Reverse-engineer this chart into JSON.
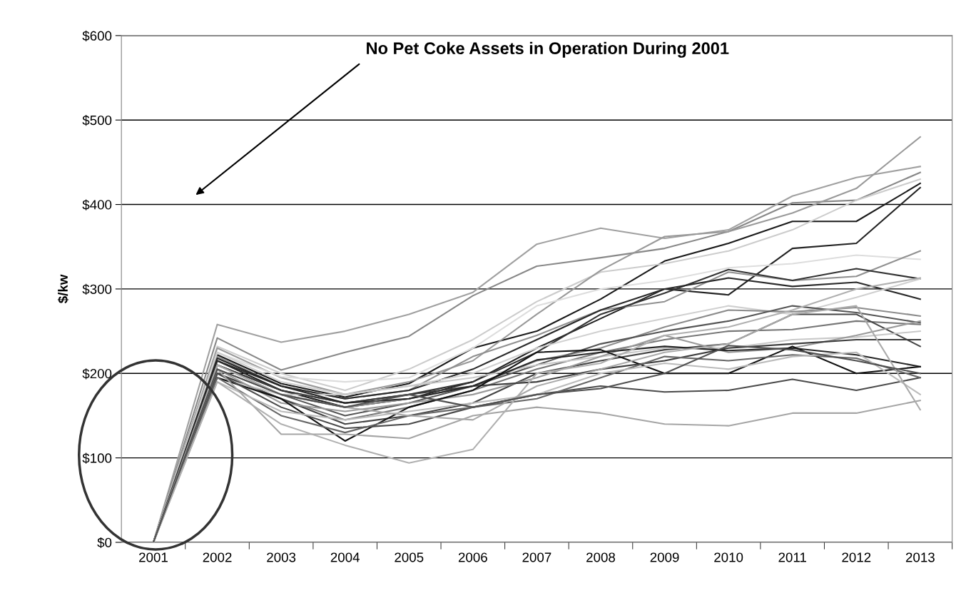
{
  "chart_data": {
    "type": "line",
    "ylabel": "$/kw",
    "categories": [
      "2001",
      "2002",
      "2003",
      "2004",
      "2005",
      "2006",
      "2007",
      "2008",
      "2009",
      "2010",
      "2011",
      "2012",
      "2013"
    ],
    "ylim": [
      0,
      600
    ],
    "yticks": [
      {
        "value": 0,
        "label": "$0"
      },
      {
        "value": 100,
        "label": "$100"
      },
      {
        "value": 200,
        "label": "$200"
      },
      {
        "value": 300,
        "label": "$300"
      },
      {
        "value": 400,
        "label": "$400"
      },
      {
        "value": 500,
        "label": "$500"
      },
      {
        "value": 600,
        "label": "$600"
      }
    ],
    "grid": "y",
    "marker": "none",
    "line_style": "solid",
    "annotations": [
      "No Pet Coke Assets in Operation During 2001"
    ],
    "series": [
      {
        "color": "#a0a0a0",
        "values": [
          0,
          258,
          237,
          250,
          270,
          296,
          353,
          372,
          360,
          370,
          410,
          432,
          445
        ]
      },
      {
        "color": "#888888",
        "values": [
          0,
          242,
          204,
          225,
          244,
          292,
          327,
          337,
          348,
          368,
          402,
          405,
          438
        ]
      },
      {
        "color": "#1a1a1a",
        "values": [
          0,
          222,
          188,
          172,
          188,
          230,
          250,
          288,
          333,
          354,
          380,
          380,
          425
        ]
      },
      {
        "color": "#cccccc",
        "values": [
          0,
          232,
          200,
          180,
          205,
          240,
          285,
          320,
          330,
          345,
          370,
          405,
          430
        ]
      },
      {
        "color": "#999999",
        "values": [
          0,
          230,
          195,
          175,
          190,
          215,
          270,
          322,
          362,
          368,
          390,
          419,
          480
        ]
      },
      {
        "color": "#222222",
        "values": [
          0,
          215,
          180,
          160,
          170,
          190,
          230,
          265,
          300,
          293,
          348,
          354,
          420
        ]
      },
      {
        "color": "#dddddd",
        "values": [
          0,
          225,
          196,
          190,
          195,
          230,
          280,
          300,
          310,
          325,
          330,
          340,
          335
        ]
      },
      {
        "color": "#909090",
        "values": [
          0,
          220,
          185,
          170,
          180,
          220,
          245,
          275,
          285,
          320,
          310,
          315,
          345
        ]
      },
      {
        "color": "#333333",
        "values": [
          0,
          210,
          180,
          165,
          175,
          190,
          225,
          270,
          295,
          323,
          310,
          324,
          312
        ]
      },
      {
        "color": "#2a2a2a",
        "values": [
          0,
          215,
          185,
          170,
          180,
          205,
          240,
          275,
          300,
          313,
          303,
          308,
          288
        ]
      },
      {
        "color": "#d0d0d0",
        "values": [
          0,
          225,
          190,
          175,
          185,
          200,
          230,
          250,
          265,
          280,
          270,
          290,
          312
        ]
      },
      {
        "color": "#8c8c8c",
        "values": [
          0,
          210,
          175,
          160,
          170,
          185,
          215,
          230,
          255,
          275,
          273,
          278,
          268
        ]
      },
      {
        "color": "#555555",
        "values": [
          0,
          205,
          175,
          150,
          165,
          185,
          210,
          235,
          250,
          262,
          280,
          272,
          260
        ]
      },
      {
        "color": "#777777",
        "values": [
          0,
          200,
          170,
          145,
          160,
          180,
          205,
          225,
          240,
          250,
          252,
          262,
          258
        ]
      },
      {
        "color": "#444444",
        "values": [
          0,
          200,
          170,
          140,
          150,
          165,
          200,
          215,
          228,
          235,
          270,
          270,
          232
        ]
      },
      {
        "color": "#c8c8c8",
        "values": [
          0,
          195,
          175,
          175,
          185,
          195,
          210,
          220,
          230,
          230,
          240,
          243,
          250
        ]
      },
      {
        "color": "#9a9a9a",
        "values": [
          0,
          205,
          165,
          155,
          165,
          175,
          195,
          220,
          245,
          225,
          230,
          245,
          262
        ]
      },
      {
        "color": "#3c3c3c",
        "values": [
          0,
          210,
          180,
          165,
          175,
          185,
          190,
          205,
          215,
          230,
          235,
          240,
          240
        ]
      },
      {
        "color": "#262626",
        "values": [
          0,
          218,
          185,
          165,
          170,
          185,
          216,
          225,
          232,
          227,
          230,
          222,
          208
        ]
      },
      {
        "color": "#111111",
        "values": [
          0,
          195,
          170,
          120,
          160,
          180,
          225,
          228,
          200,
          200,
          232,
          200,
          208
        ]
      },
      {
        "color": "#4a4a4a",
        "values": [
          0,
          200,
          160,
          135,
          140,
          160,
          175,
          185,
          178,
          180,
          193,
          180,
          195
        ]
      },
      {
        "color": "#666666",
        "values": [
          0,
          195,
          150,
          130,
          150,
          160,
          170,
          195,
          220,
          215,
          222,
          218,
          195
        ]
      },
      {
        "color": "#bbbbbb",
        "values": [
          0,
          190,
          155,
          145,
          155,
          165,
          175,
          200,
          212,
          205,
          220,
          225,
          175
        ]
      },
      {
        "color": "#a5a5a5",
        "values": [
          0,
          205,
          128,
          128,
          123,
          150,
          160,
          153,
          140,
          138,
          153,
          153,
          168
        ]
      },
      {
        "color": "#b0b0b0",
        "values": [
          0,
          190,
          140,
          115,
          94,
          110,
          200,
          212,
          245,
          255,
          275,
          300,
          313
        ]
      },
      {
        "color": "#aaaaaa",
        "values": [
          0,
          210,
          175,
          160,
          150,
          145,
          185,
          205,
          225,
          235,
          270,
          280,
          157
        ]
      },
      {
        "color": "#505050",
        "values": [
          0,
          205,
          175,
          160,
          175,
          160,
          175,
          182,
          200,
          233,
          228,
          215,
          200
        ]
      }
    ]
  }
}
